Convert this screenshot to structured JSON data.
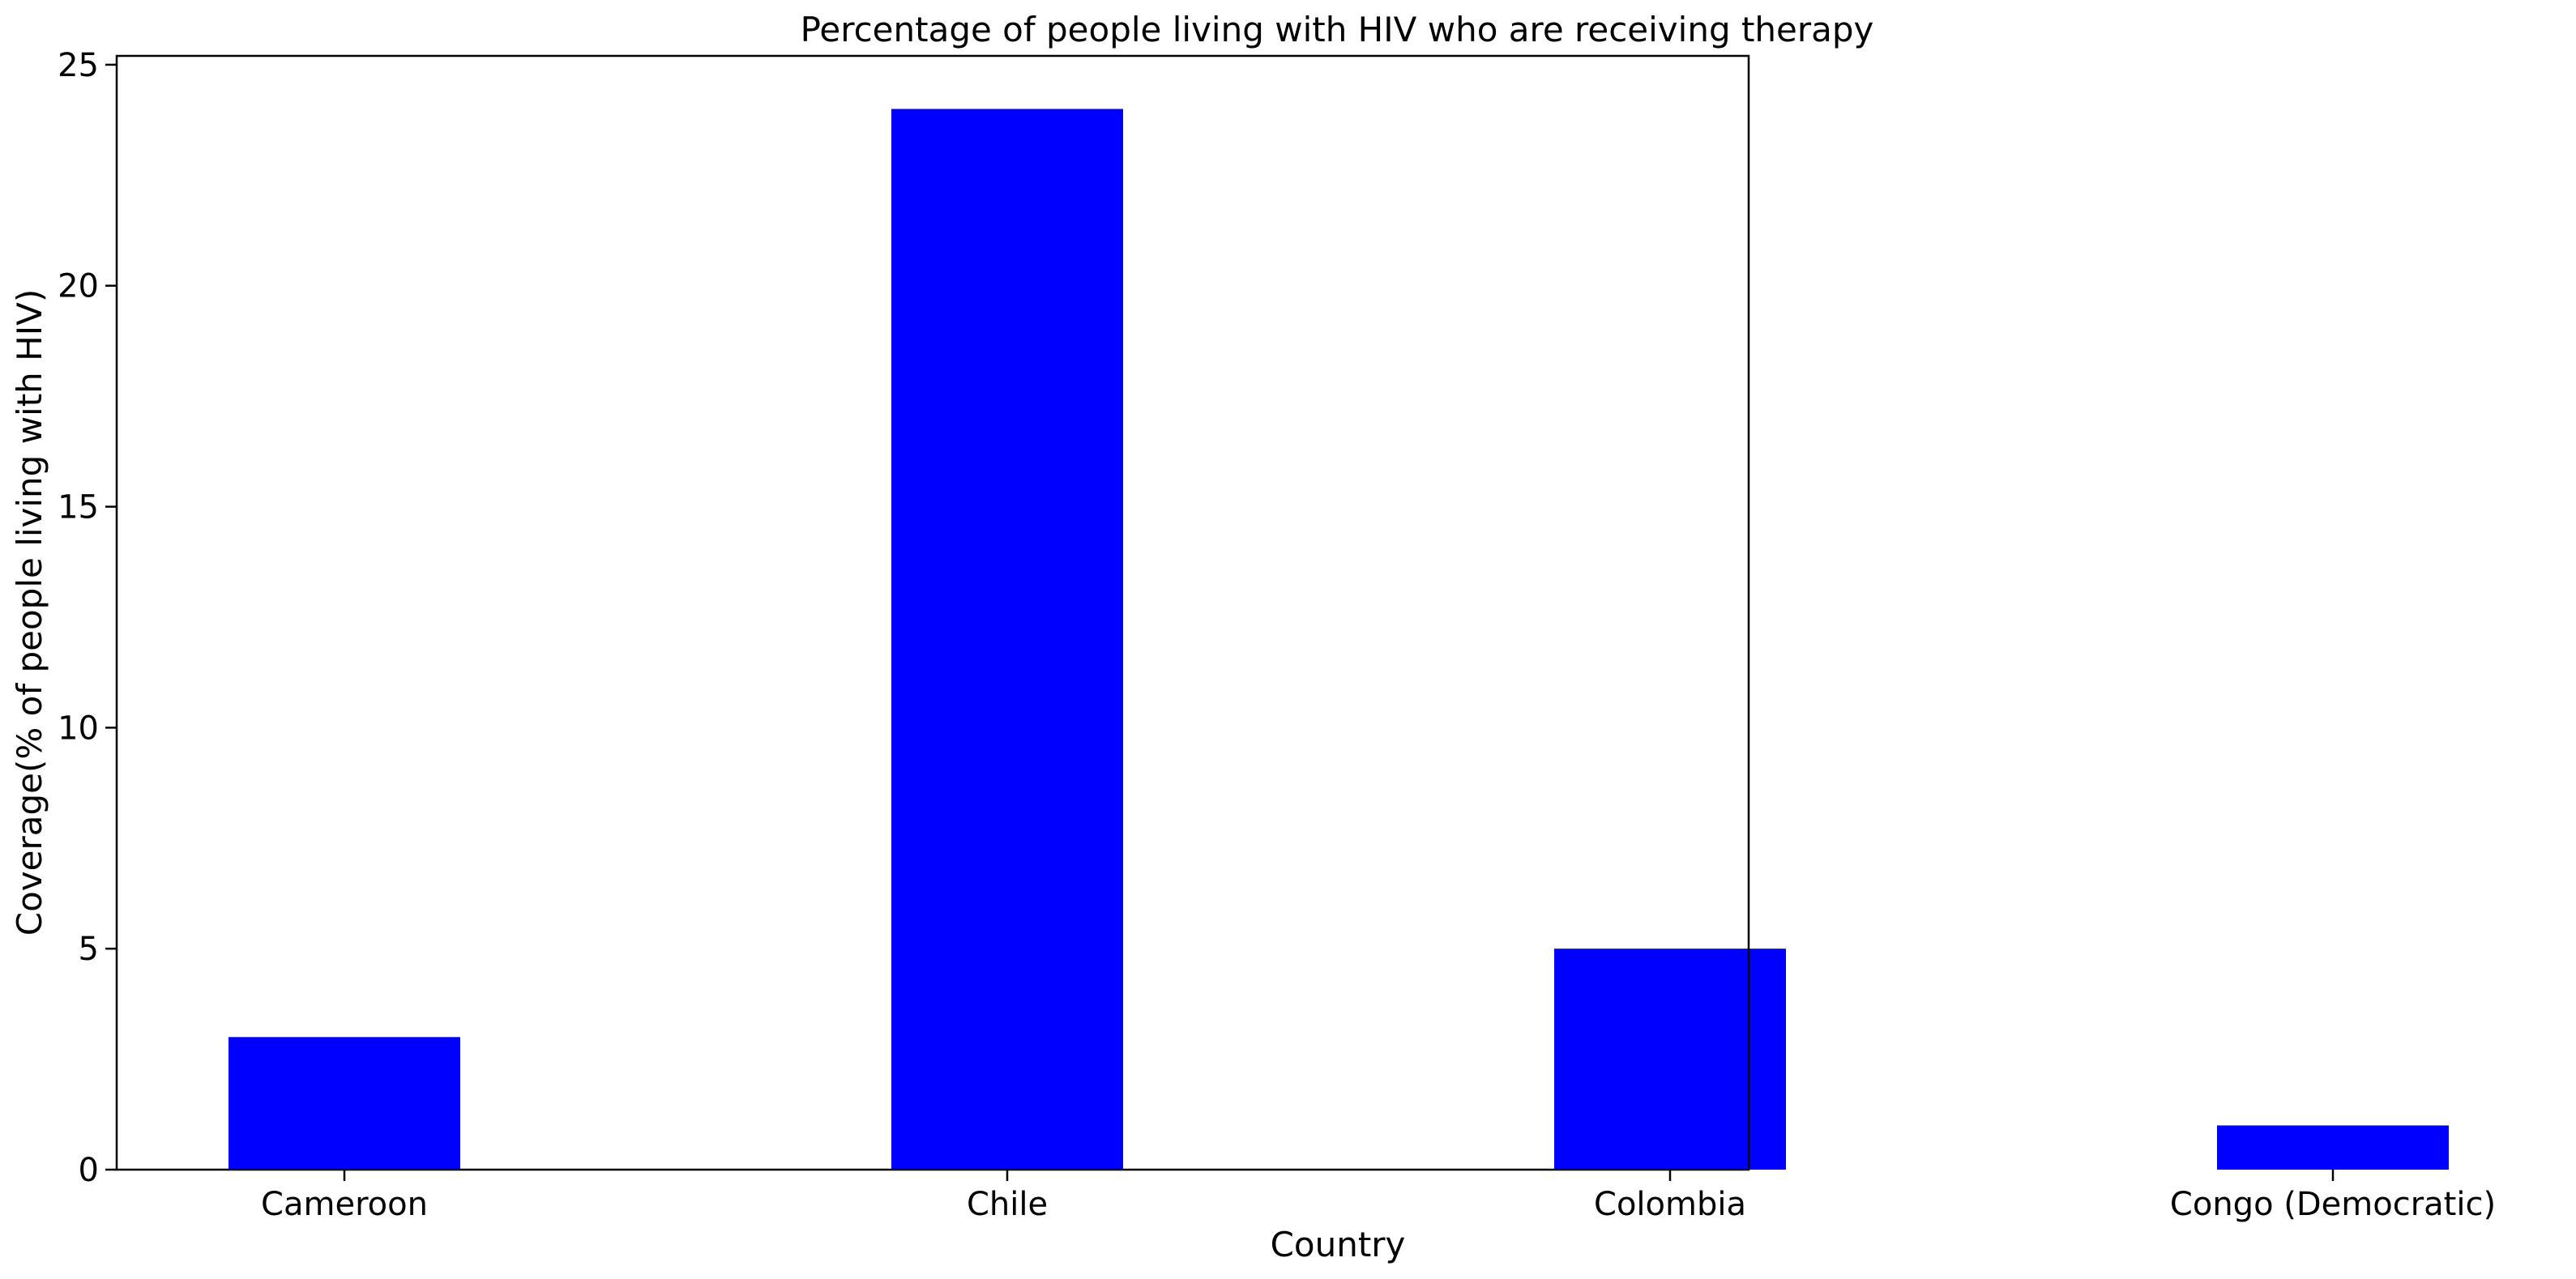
{
  "chart_data": {
    "type": "bar",
    "title": "Percentage of people living with HIV who are receiving therapy",
    "xlabel": "Country",
    "ylabel": "Coverage(% of people living with HIV)",
    "categories": [
      "Cameroon",
      "Chile",
      "Colombia",
      "Congo (Democratic)"
    ],
    "values": [
      3,
      24,
      5,
      1
    ],
    "ylim": [
      0,
      25.2
    ],
    "yticks": [
      0,
      5,
      10,
      15,
      20,
      25
    ],
    "grid": false,
    "legend": "none",
    "bar_color": "#0000ff"
  }
}
